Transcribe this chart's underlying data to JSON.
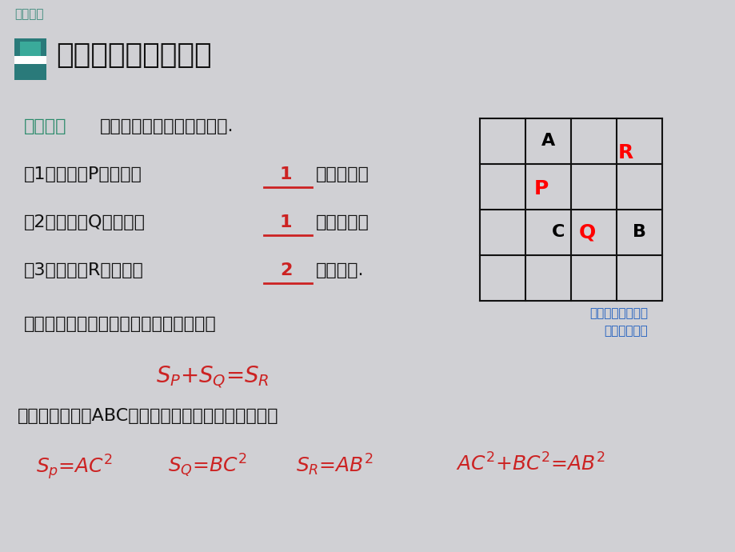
{
  "bg_color": "#d0d0d4",
  "top_label": "讲授新课",
  "top_label_color": "#3a8a7a",
  "title_text": "勾股定理的初步认识",
  "title_color": "#111111",
  "title_icon_dark": "#2a7a7a",
  "title_icon_light": "#3aaa9a",
  "subtitle_color": "#2a8a6a",
  "subtitle": "做一做：",
  "subtitle_rest": "观察正方形瓷砖铺成的地面.",
  "q1": "（1）正方形P的面积是",
  "q1_ans": "1",
  "q1_rest": "平方厘米；",
  "q2": "（2）正方形Q的面积是",
  "q2_ans": "1",
  "q2_rest": "平方厘米；",
  "q3": "（3）正方形R的面积是",
  "q3_ans": "2",
  "q3_rest": "平方厘米.",
  "q4": "上面三个正方形的面积之间有什么关系？",
  "note_line1": "（图中每一格代表",
  "note_line2": "一平方厘米）",
  "note_color": "#1a5bbf",
  "formula1_color": "#cc2222",
  "formula2_color": "#cc2222",
  "ans_color": "#cc2222",
  "text_color": "#111111",
  "q5": "等腰直角三角形ABC三边长度之间存在什么关系吗？",
  "grid_color": "#111111"
}
